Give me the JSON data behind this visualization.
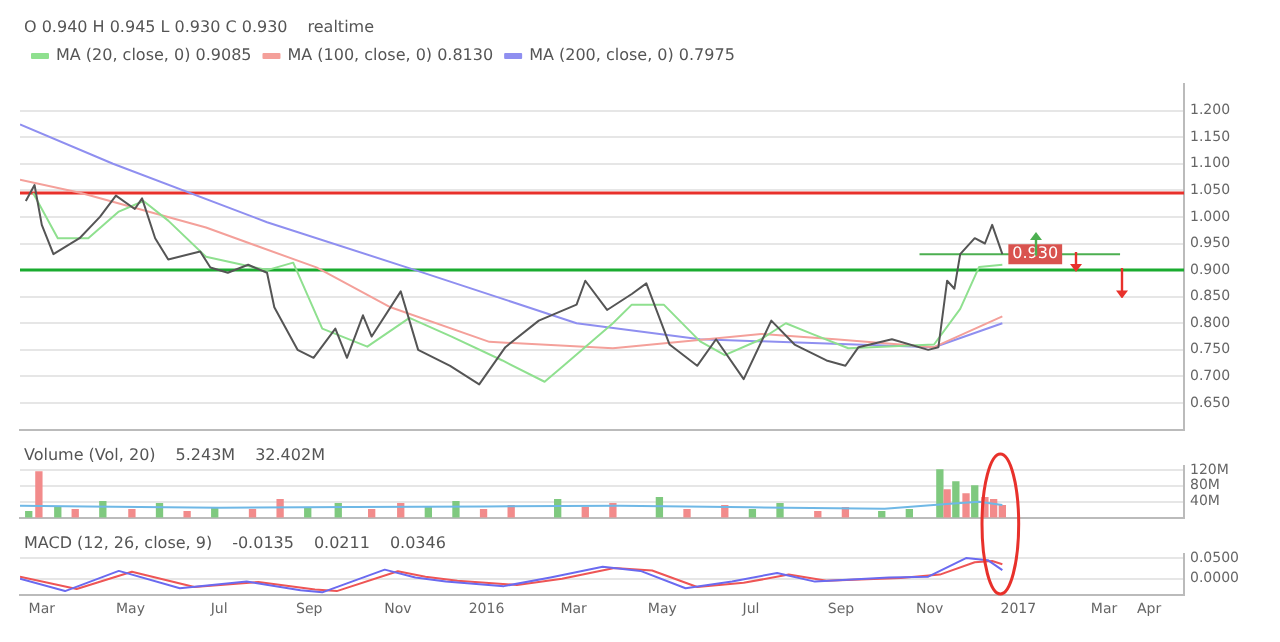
{
  "chart_data": [
    {
      "type": "line",
      "annotations": [
        "O 0.940 H 0.945 L 0.930 C 0.930",
        "realtime",
        {
          "text": "0.930",
          "x": "2016-12-21",
          "y": 0.93
        }
      ],
      "series": [
        {
          "x": [
            "2015-02-18",
            "2015-02-24",
            "2015-03-01",
            "2015-03-09",
            "2015-03-27",
            "2015-04-10",
            "2015-04-21",
            "2015-05-04",
            "2015-05-09",
            "2015-05-18",
            "2015-05-27",
            "2015-06-18",
            "2015-06-25",
            "2015-07-07",
            "2015-07-21",
            "2015-08-03",
            "2015-08-08",
            "2015-08-24",
            "2015-09-04",
            "2015-09-19",
            "2015-09-27",
            "2015-10-08",
            "2015-10-14",
            "2015-11-03",
            "2015-11-15",
            "2015-12-07",
            "2015-12-27",
            "2016-01-14",
            "2016-02-06",
            "2016-03-03",
            "2016-03-09",
            "2016-03-24",
            "2016-04-10",
            "2016-04-20",
            "2016-05-06",
            "2016-05-25",
            "2016-06-07",
            "2016-06-26",
            "2016-07-15",
            "2016-07-31",
            "2016-08-22",
            "2016-09-04",
            "2016-09-13",
            "2016-10-06",
            "2016-10-31",
            "2016-11-07",
            "2016-11-13",
            "2016-11-18",
            "2016-11-22",
            "2016-12-02",
            "2016-12-09",
            "2016-12-14",
            "2016-12-21"
          ],
          "values": [
            1.03,
            1.06,
            0.985,
            0.93,
            0.96,
            1.0,
            1.04,
            1.015,
            1.035,
            0.96,
            0.92,
            0.935,
            0.905,
            0.895,
            0.91,
            0.895,
            0.83,
            0.75,
            0.735,
            0.79,
            0.735,
            0.815,
            0.775,
            0.86,
            0.75,
            0.72,
            0.685,
            0.755,
            0.805,
            0.835,
            0.88,
            0.825,
            0.855,
            0.875,
            0.76,
            0.72,
            0.77,
            0.695,
            0.805,
            0.76,
            0.73,
            0.72,
            0.755,
            0.77,
            0.75,
            0.755,
            0.88,
            0.865,
            0.93,
            0.96,
            0.95,
            0.985,
            0.93
          ],
          "color": "#555555"
        },
        {
          "name": "MA (20, close, 0) 0.9085",
          "color": "#8fe08f",
          "x": [
            "2015-02-23",
            "2015-03-12",
            "2015-04-02",
            "2015-04-23",
            "2015-05-10",
            "2015-05-27",
            "2015-06-22",
            "2015-07-17",
            "2015-08-03",
            "2015-08-21",
            "2015-09-10",
            "2015-10-11",
            "2015-11-09",
            "2015-12-08",
            "2016-01-12",
            "2016-02-10",
            "2016-02-23",
            "2016-03-28",
            "2016-04-10",
            "2016-05-02",
            "2016-05-27",
            "2016-06-13",
            "2016-07-08",
            "2016-07-25",
            "2016-08-12",
            "2016-09-06",
            "2016-11-04",
            "2016-11-22",
            "2016-12-05",
            "2016-12-21"
          ],
          "values": [
            1.045,
            0.96,
            0.96,
            1.01,
            1.03,
            0.993,
            0.925,
            0.91,
            0.9,
            0.914,
            0.79,
            0.756,
            0.81,
            0.775,
            0.73,
            0.69,
            0.72,
            0.8,
            0.835,
            0.835,
            0.766,
            0.74,
            0.77,
            0.8,
            0.78,
            0.753,
            0.76,
            0.827,
            0.906,
            0.91
          ]
        },
        {
          "name": "MA (100, close, 0) 0.8130",
          "color": "#f4a09a",
          "x": [
            "2015-02-14",
            "2015-03-28",
            "2015-06-22",
            "2015-09-06",
            "2015-10-27",
            "2016-01-03",
            "2016-03-28",
            "2016-07-08",
            "2016-08-28",
            "2016-11-04",
            "2016-12-21"
          ],
          "values": [
            1.07,
            1.045,
            0.98,
            0.905,
            0.83,
            0.765,
            0.753,
            0.78,
            0.77,
            0.755,
            0.813
          ]
        },
        {
          "name": "MA (200, close, 0) 0.7975",
          "color": "#8f8ff0",
          "x": [
            "2015-02-14",
            "2015-04-19",
            "2015-08-03",
            "2015-11-13",
            "2016-03-03",
            "2016-05-27",
            "2016-11-04",
            "2016-12-21"
          ],
          "values": [
            1.174,
            1.1,
            0.99,
            0.9,
            0.8,
            0.77,
            0.755,
            0.8
          ]
        },
        {
          "color": "#4caf50",
          "x": [
            "2016-10-25",
            "2017-03-12"
          ],
          "values": [
            0.93,
            0.93
          ]
        }
      ],
      "ref_lines": [
        {
          "axis": "y",
          "value": 1.045,
          "color": "#e8312b"
        },
        {
          "axis": "y",
          "value": 0.9,
          "color": "#1aab2f"
        }
      ],
      "xlim": [
        "2015-02-14",
        "2017-04-25"
      ],
      "ylim": [
        0.6,
        1.25
      ],
      "yticks": [
        {
          "value": 0.65,
          "label": "0.650"
        },
        {
          "value": 0.7,
          "label": "0.700"
        },
        {
          "value": 0.75,
          "label": "0.750"
        },
        {
          "value": 0.8,
          "label": "0.800"
        },
        {
          "value": 0.85,
          "label": "0.850"
        },
        {
          "value": 0.9,
          "label": "0.900"
        },
        {
          "value": 0.95,
          "label": "0.950"
        },
        {
          "value": 1.0,
          "label": "1.000"
        },
        {
          "value": 1.05,
          "label": "1.050"
        },
        {
          "value": 1.1,
          "label": "1.100"
        },
        {
          "value": 1.15,
          "label": "1.150"
        },
        {
          "value": 1.2,
          "label": "1.200"
        }
      ],
      "grid": "y",
      "legend": "top left",
      "tick_labels": "y"
    },
    {
      "type": "bar",
      "title": "Volume (Vol, 20)",
      "annotations": [
        "5.243M",
        "32.402M"
      ],
      "series": [
        {
          "type": "bar",
          "x": [
            "2015-02-20",
            "2015-02-27",
            "2015-03-12",
            "2015-03-24",
            "2015-04-12",
            "2015-05-02",
            "2015-05-21",
            "2015-06-09",
            "2015-06-28",
            "2015-07-24",
            "2015-08-12",
            "2015-08-31",
            "2015-09-21",
            "2015-10-14",
            "2015-11-03",
            "2015-11-22",
            "2015-12-11",
            "2015-12-30",
            "2016-01-18",
            "2016-02-19",
            "2016-03-09",
            "2016-03-28",
            "2016-04-29",
            "2016-05-18",
            "2016-06-13",
            "2016-07-02",
            "2016-07-21",
            "2016-08-16",
            "2016-09-04",
            "2016-09-29",
            "2016-10-18",
            "2016-11-08",
            "2016-11-13",
            "2016-11-19",
            "2016-11-26",
            "2016-12-02",
            "2016-12-09",
            "2016-12-15",
            "2016-12-21"
          ],
          "values": [
            15,
            115,
            25,
            20,
            40,
            20,
            35,
            15,
            25,
            20,
            45,
            25,
            35,
            20,
            35,
            25,
            40,
            20,
            30,
            45,
            25,
            35,
            50,
            20,
            30,
            20,
            35,
            15,
            25,
            15,
            20,
            120,
            70,
            90,
            60,
            80,
            50,
            45,
            30
          ],
          "colors": [
            "#7fc97f",
            "#f28b8b",
            "#7fc97f",
            "#f28b8b",
            "#7fc97f",
            "#f28b8b",
            "#7fc97f",
            "#f28b8b",
            "#7fc97f",
            "#f28b8b",
            "#f28b8b",
            "#7fc97f",
            "#7fc97f",
            "#f28b8b",
            "#f28b8b",
            "#7fc97f",
            "#7fc97f",
            "#f28b8b",
            "#f28b8b",
            "#7fc97f",
            "#f28b8b",
            "#f28b8b",
            "#7fc97f",
            "#f28b8b",
            "#f28b8b",
            "#7fc97f",
            "#7fc97f",
            "#f28b8b",
            "#f28b8b",
            "#7fc97f",
            "#7fc97f",
            "#7fc97f",
            "#f28b8b",
            "#7fc97f",
            "#f28b8b",
            "#7fc97f",
            "#f28b8b",
            "#f28b8b",
            "#f28b8b"
          ]
        },
        {
          "type": "line",
          "color": "#6fb8e6",
          "x": [
            "2015-02-14",
            "2015-04-01",
            "2015-07-01",
            "2015-10-01",
            "2016-01-01",
            "2016-04-01",
            "2016-07-01",
            "2016-10-01",
            "2016-11-15",
            "2016-12-05",
            "2016-12-21"
          ],
          "values": [
            30,
            28,
            25,
            27,
            28,
            30,
            26,
            22,
            35,
            40,
            32
          ]
        }
      ],
      "xlim": [
        "2015-02-14",
        "2017-04-25"
      ],
      "ylim": [
        0,
        130
      ],
      "yticks": [
        {
          "value": 40,
          "label": "40M"
        },
        {
          "value": 80,
          "label": "80M"
        },
        {
          "value": 120,
          "label": "120M"
        }
      ],
      "grid": "y",
      "tick_labels": "y"
    },
    {
      "type": "line",
      "title": "MACD (12, 26, close, 9)",
      "annotations": [
        "-0.0135",
        "0.0211",
        "0.0346"
      ],
      "series": [
        {
          "color": "#6a6af0",
          "x": [
            "2015-02-14",
            "2015-03-17",
            "2015-04-23",
            "2015-06-04",
            "2015-07-20",
            "2015-08-26",
            "2015-09-10",
            "2015-10-23",
            "2015-11-13",
            "2015-12-04",
            "2016-01-13",
            "2016-02-14",
            "2016-03-21",
            "2016-04-16",
            "2016-05-17",
            "2016-06-18",
            "2016-07-19",
            "2016-08-14",
            "2016-10-04",
            "2016-10-31",
            "2016-11-26",
            "2016-12-11",
            "2016-12-21"
          ],
          "values": [
            0.0,
            -0.03,
            0.019,
            -0.023,
            -0.007,
            -0.028,
            -0.033,
            0.022,
            0.003,
            -0.007,
            -0.018,
            0.003,
            0.029,
            0.019,
            -0.023,
            -0.007,
            0.014,
            -0.007,
            0.003,
            0.005,
            0.05,
            0.045,
            0.021
          ]
        },
        {
          "color": "#ee5555",
          "x": [
            "2015-02-14",
            "2015-03-25",
            "2015-05-02",
            "2015-06-14",
            "2015-07-28",
            "2015-09-05",
            "2015-09-20",
            "2015-11-01",
            "2015-11-20",
            "2015-12-12",
            "2016-01-22",
            "2016-02-22",
            "2016-03-29",
            "2016-04-24",
            "2016-05-25",
            "2016-06-26",
            "2016-07-27",
            "2016-08-22",
            "2016-10-12",
            "2016-11-08",
            "2016-12-02",
            "2016-12-14",
            "2016-12-21"
          ],
          "values": [
            0.005,
            -0.025,
            0.017,
            -0.02,
            -0.008,
            -0.026,
            -0.03,
            0.018,
            0.005,
            -0.005,
            -0.015,
            0.0,
            0.026,
            0.02,
            -0.02,
            -0.01,
            0.01,
            -0.005,
            0.002,
            0.01,
            0.04,
            0.043,
            0.035
          ]
        }
      ],
      "xlim": [
        "2015-02-14",
        "2017-04-25"
      ],
      "xticks": [
        {
          "value": "2015-03",
          "label": "Mar"
        },
        {
          "value": "2015-05",
          "label": "May"
        },
        {
          "value": "2015-07",
          "label": "Jul"
        },
        {
          "value": "2015-09",
          "label": "Sep"
        },
        {
          "value": "2015-11",
          "label": "Nov"
        },
        {
          "value": "2016-01",
          "label": "2016"
        },
        {
          "value": "2016-03",
          "label": "Mar"
        },
        {
          "value": "2016-05",
          "label": "May"
        },
        {
          "value": "2016-07",
          "label": "Jul"
        },
        {
          "value": "2016-09",
          "label": "Sep"
        },
        {
          "value": "2016-11",
          "label": "Nov"
        },
        {
          "value": "2017-01",
          "label": "2017"
        },
        {
          "value": "2017-03",
          "label": "Mar"
        },
        {
          "value": "2017-04",
          "label": "Apr"
        }
      ],
      "ylim": [
        -0.04,
        0.06
      ],
      "yticks": [
        {
          "value": 0.0,
          "label": "0.0000"
        },
        {
          "value": 0.05,
          "label": "0.0500"
        }
      ],
      "grid": "y"
    }
  ]
}
